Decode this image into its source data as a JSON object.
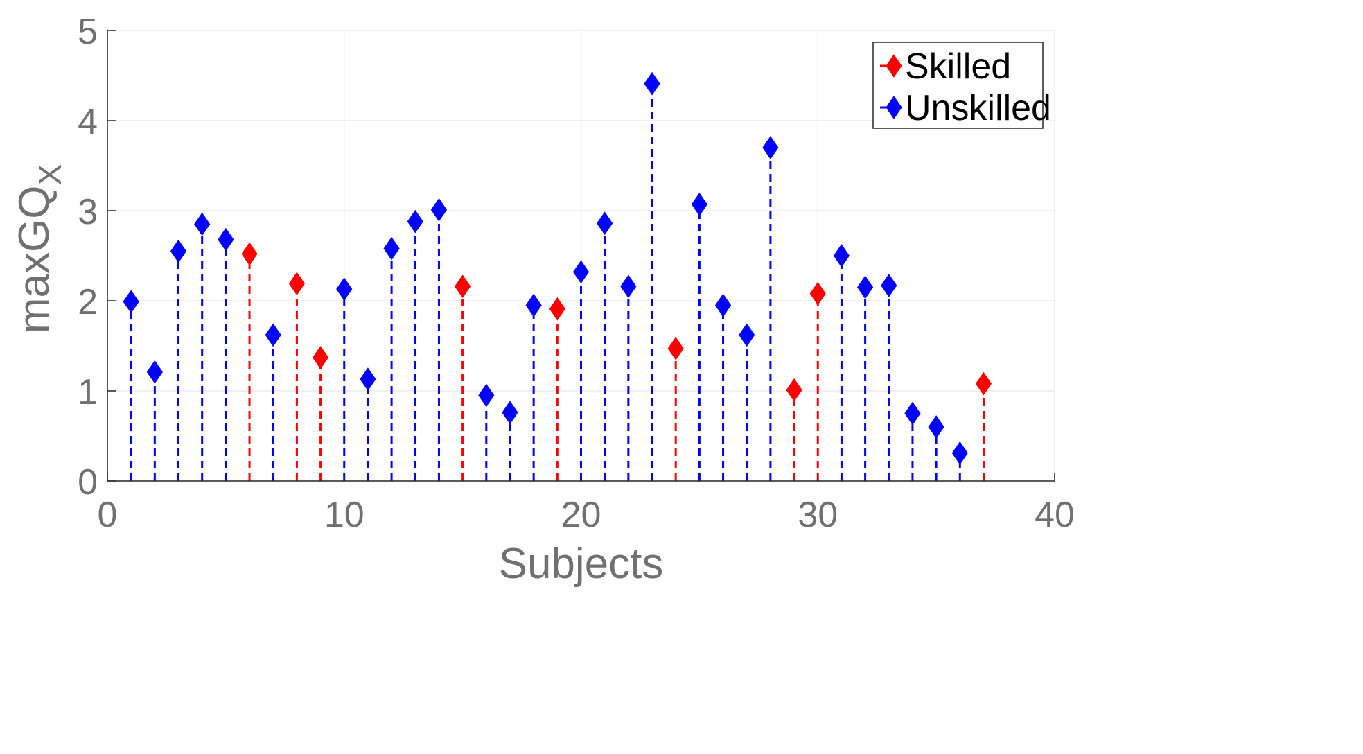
{
  "chart_data": {
    "type": "stem",
    "xlabel": "Subjects",
    "ylabel": {
      "main": "maxGQ",
      "sub": "X"
    },
    "xlim": [
      0,
      40
    ],
    "ylim": [
      0,
      5
    ],
    "xticks": [
      "0",
      "10",
      "20",
      "30",
      "40"
    ],
    "yticks": [
      "0",
      "1",
      "2",
      "3",
      "4",
      "5"
    ],
    "grid": true,
    "legend_position": "top-right",
    "series": [
      {
        "name": "Skilled",
        "color": "#ff0000",
        "marker": "diamond",
        "line_style": "dashed",
        "points": [
          {
            "x": 6,
            "y": 2.52
          },
          {
            "x": 8,
            "y": 2.19
          },
          {
            "x": 9,
            "y": 1.37
          },
          {
            "x": 15,
            "y": 2.16
          },
          {
            "x": 19,
            "y": 1.91
          },
          {
            "x": 24,
            "y": 1.47
          },
          {
            "x": 29,
            "y": 1.01
          },
          {
            "x": 30,
            "y": 2.08
          },
          {
            "x": 37,
            "y": 1.08
          }
        ]
      },
      {
        "name": "Unskilled",
        "color": "#0000ff",
        "marker": "diamond",
        "line_style": "dashed",
        "points": [
          {
            "x": 1,
            "y": 1.99
          },
          {
            "x": 2,
            "y": 1.21
          },
          {
            "x": 3,
            "y": 2.55
          },
          {
            "x": 4,
            "y": 2.85
          },
          {
            "x": 5,
            "y": 2.68
          },
          {
            "x": 7,
            "y": 1.62
          },
          {
            "x": 10,
            "y": 2.13
          },
          {
            "x": 11,
            "y": 1.13
          },
          {
            "x": 12,
            "y": 2.58
          },
          {
            "x": 13,
            "y": 2.88
          },
          {
            "x": 14,
            "y": 3.01
          },
          {
            "x": 16,
            "y": 0.95
          },
          {
            "x": 17,
            "y": 0.76
          },
          {
            "x": 18,
            "y": 1.95
          },
          {
            "x": 20,
            "y": 2.32
          },
          {
            "x": 21,
            "y": 2.86
          },
          {
            "x": 22,
            "y": 2.16
          },
          {
            "x": 23,
            "y": 4.41
          },
          {
            "x": 25,
            "y": 3.07
          },
          {
            "x": 26,
            "y": 1.95
          },
          {
            "x": 27,
            "y": 1.62
          },
          {
            "x": 28,
            "y": 3.7
          },
          {
            "x": 31,
            "y": 2.5
          },
          {
            "x": 32,
            "y": 2.15
          },
          {
            "x": 33,
            "y": 2.17
          },
          {
            "x": 34,
            "y": 0.75
          },
          {
            "x": 35,
            "y": 0.6
          },
          {
            "x": 36,
            "y": 0.31
          }
        ]
      }
    ]
  }
}
